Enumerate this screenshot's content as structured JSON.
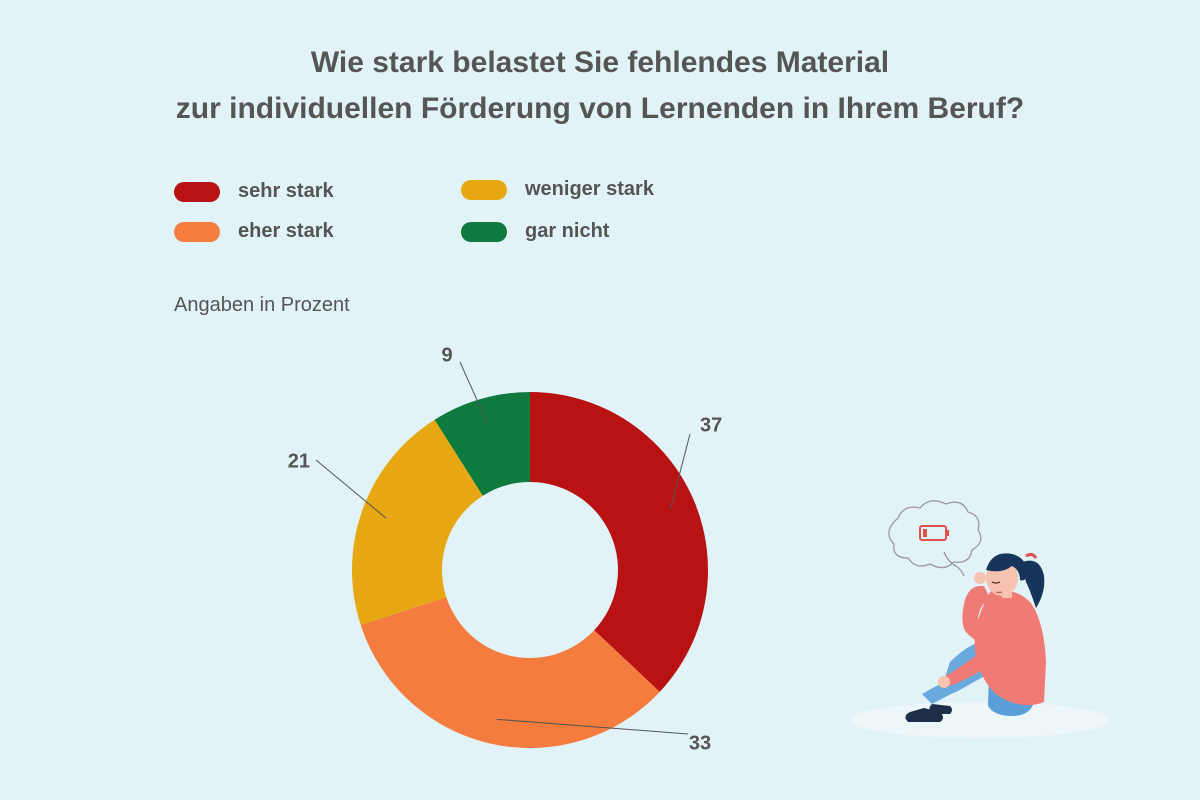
{
  "title_lines": [
    "Wie stark belastet Sie fehlendes Material",
    "zur individuellen Förderung von Lernenden in Ihrem Beruf?"
  ],
  "unit_note": "Angaben in Prozent",
  "colors": {
    "background": "#e2f3f7",
    "text": "#555555",
    "sehr_stark": "#b81212",
    "eher_stark": "#f47c3f",
    "weniger_stark": "#e6a713",
    "gar_nicht": "#0f7a3e"
  },
  "chart_data": {
    "type": "pie",
    "variant": "donut",
    "title": "Wie stark belastet Sie fehlendes Material zur individuellen Förderung von Lernenden in Ihrem Beruf?",
    "unit": "Angaben in Prozent",
    "legend_position": "top-left",
    "slices": [
      {
        "label": "sehr stark",
        "value": 37,
        "color": "#b81212"
      },
      {
        "label": "eher stark",
        "value": 33,
        "color": "#f47c3f"
      },
      {
        "label": "weniger stark",
        "value": 21,
        "color": "#e6a713"
      },
      {
        "label": "gar nicht",
        "value": 9,
        "color": "#0f7a3e"
      }
    ]
  },
  "illustration": {
    "icon": "woman-sitting-with-empty-battery-thought-bubble-icon"
  }
}
